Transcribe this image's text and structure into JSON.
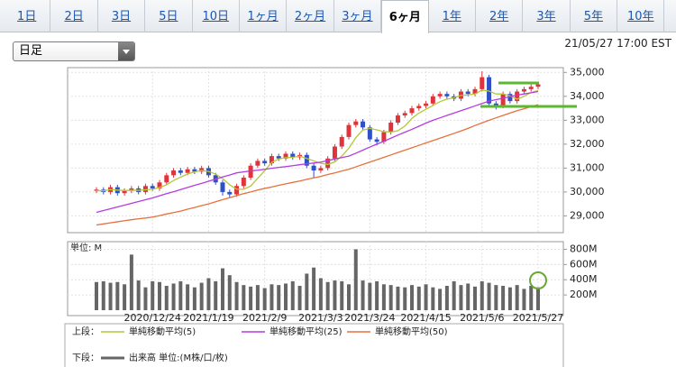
{
  "tabs": [
    {
      "label": "1日"
    },
    {
      "label": "2日"
    },
    {
      "label": "3日"
    },
    {
      "label": "5日"
    },
    {
      "label": "10日"
    },
    {
      "label": "1ヶ月"
    },
    {
      "label": "2ヶ月"
    },
    {
      "label": "3ヶ月"
    },
    {
      "label": "6ヶ月",
      "selected": true
    },
    {
      "label": "1年"
    },
    {
      "label": "2年"
    },
    {
      "label": "3年"
    },
    {
      "label": "5年"
    },
    {
      "label": "10年"
    }
  ],
  "dropdown": "日足",
  "timestamp": "21/05/27 17:00 EST",
  "legend": {
    "upper": "上段：",
    "lower": "下段："
  },
  "chart_data": [
    {
      "type": "candlestick",
      "up_color": "#e0343c",
      "down_color": "#3050c8",
      "grid": true,
      "open": [
        30050,
        30100,
        30000,
        30200,
        29950,
        30050,
        30150,
        30000,
        30250,
        30150,
        30400,
        30700,
        30900,
        30800,
        30950,
        30850,
        31000,
        30700,
        30400,
        30000,
        29900,
        30250,
        30600,
        31100,
        31300,
        31200,
        31500,
        31400,
        31600,
        31450,
        31550,
        31100,
        30900,
        31000,
        31400,
        31900,
        32300,
        32800,
        32950,
        32700,
        32200,
        32100,
        32500,
        32900,
        33200,
        33300,
        33500,
        33600,
        33700,
        34000,
        34100,
        34000,
        33900,
        34200,
        34100,
        34300,
        34800,
        33700,
        33600,
        34100,
        33800,
        34200,
        34300,
        34400
      ],
      "high": [
        30200,
        30200,
        30300,
        30300,
        30150,
        30250,
        30250,
        30350,
        30350,
        30500,
        30800,
        31000,
        31000,
        31050,
        31050,
        31100,
        31100,
        30800,
        30500,
        30100,
        30350,
        30700,
        31200,
        31400,
        31400,
        31600,
        31600,
        31700,
        31700,
        31650,
        31650,
        31200,
        31100,
        31500,
        32000,
        32400,
        32900,
        33050,
        33050,
        32800,
        32300,
        32600,
        33000,
        33300,
        33400,
        33600,
        33700,
        33800,
        34100,
        34200,
        34200,
        34100,
        34300,
        34300,
        34400,
        35050,
        34900,
        33800,
        34200,
        34200,
        34300,
        34400,
        34500,
        34600
      ],
      "low": [
        29950,
        29900,
        29900,
        29850,
        29850,
        29950,
        29900,
        29900,
        30050,
        30050,
        30300,
        30600,
        30700,
        30700,
        30750,
        30750,
        30600,
        30300,
        29850,
        29750,
        29800,
        30150,
        30500,
        31000,
        31100,
        31100,
        31300,
        31300,
        31350,
        31350,
        31000,
        30600,
        30800,
        30900,
        31300,
        31800,
        32200,
        32700,
        32600,
        32100,
        31950,
        32000,
        32400,
        32800,
        33100,
        33200,
        33400,
        33500,
        33600,
        33900,
        33900,
        33800,
        33800,
        34000,
        34000,
        34200,
        33600,
        33450,
        33500,
        33700,
        33700,
        34100,
        34200,
        34300
      ],
      "close": [
        30100,
        30000,
        30200,
        29950,
        30050,
        30150,
        30000,
        30250,
        30150,
        30400,
        30700,
        30900,
        30800,
        30950,
        30850,
        31000,
        30700,
        30400,
        30000,
        29900,
        30250,
        30600,
        31100,
        31300,
        31200,
        31500,
        31400,
        31600,
        31450,
        31550,
        31100,
        30900,
        31000,
        31400,
        31900,
        32300,
        32800,
        32950,
        32700,
        32200,
        32100,
        32500,
        32900,
        33200,
        33300,
        33500,
        33600,
        33700,
        34000,
        34100,
        34000,
        33900,
        34200,
        34100,
        34300,
        34800,
        33700,
        33600,
        34100,
        33800,
        34200,
        34300,
        34400,
        34500
      ],
      "series": [
        {
          "name": "単純移動平均(5)",
          "color": "#b4c83a",
          "values": [
            30050,
            30050,
            30100,
            30080,
            30060,
            30070,
            30070,
            30090,
            30110,
            30190,
            30300,
            30480,
            30620,
            30750,
            30840,
            30900,
            30860,
            30750,
            30560,
            30300,
            30120,
            30110,
            30250,
            30570,
            30890,
            31240,
            31380,
            31440,
            31450,
            31500,
            31400,
            31300,
            31200,
            31150,
            31260,
            31500,
            31830,
            32270,
            32590,
            32660,
            32600,
            32520,
            32510,
            32560,
            32760,
            33080,
            33300,
            33460,
            33620,
            33780,
            33880,
            33940,
            34040,
            34060,
            34100,
            34260,
            34220,
            34100,
            34100,
            34020,
            33880,
            34000,
            34160,
            34240
          ]
        },
        {
          "name": "単純移動平均(25)",
          "color": "#b43ce0",
          "values": [
            29150,
            29225,
            29300,
            29375,
            29450,
            29525,
            29600,
            29675,
            29750,
            29840,
            29930,
            30010,
            30100,
            30190,
            30280,
            30360,
            30450,
            30540,
            30630,
            30710,
            30800,
            30840,
            30880,
            30910,
            30950,
            30990,
            31030,
            31060,
            31100,
            31140,
            31180,
            31210,
            31250,
            31310,
            31380,
            31440,
            31500,
            31620,
            31750,
            31880,
            32000,
            32120,
            32250,
            32380,
            32500,
            32620,
            32750,
            32880,
            33000,
            33100,
            33200,
            33300,
            33400,
            33500,
            33600,
            33700,
            33800,
            33860,
            33920,
            33990,
            34050,
            34100,
            34150,
            34200
          ]
        },
        {
          "name": "単純移動平均(50)",
          "color": "#e8703c",
          "values": [
            28620,
            28665,
            28710,
            28755,
            28800,
            28840,
            28880,
            28910,
            28950,
            29010,
            29080,
            29140,
            29200,
            29280,
            29350,
            29430,
            29500,
            29590,
            29680,
            29760,
            29850,
            29930,
            30000,
            30080,
            30150,
            30210,
            30280,
            30340,
            30400,
            30460,
            30530,
            30590,
            30650,
            30730,
            30800,
            30880,
            30950,
            31050,
            31150,
            31250,
            31350,
            31450,
            31550,
            31650,
            31750,
            31850,
            31950,
            32050,
            32150,
            32250,
            32350,
            32450,
            32550,
            32660,
            32780,
            32890,
            33000,
            33100,
            33200,
            33300,
            33400,
            33480,
            33570,
            33650
          ]
        }
      ],
      "ylim": [
        28300,
        35200
      ],
      "yticks": [
        {
          "value": 29000,
          "label": "29,000"
        },
        {
          "value": 30000,
          "label": "30,000"
        },
        {
          "value": 31000,
          "label": "31,000"
        },
        {
          "value": 32000,
          "label": "32,000"
        },
        {
          "value": 33000,
          "label": "33,000"
        },
        {
          "value": 34000,
          "label": "34,000"
        },
        {
          "value": 35000,
          "label": "35,000"
        }
      ]
    },
    {
      "type": "bar",
      "unit_label": "単位: M",
      "grid": true,
      "categories": [
        null,
        null,
        null,
        null,
        null,
        null,
        null,
        null,
        "2020/12/24",
        null,
        null,
        null,
        null,
        null,
        null,
        null,
        "2021/1/19",
        null,
        null,
        null,
        null,
        null,
        null,
        null,
        "2021/2/9",
        null,
        null,
        null,
        null,
        null,
        null,
        null,
        "2021/3/3",
        null,
        null,
        null,
        null,
        null,
        null,
        "2021/3/24",
        null,
        null,
        null,
        null,
        null,
        null,
        null,
        "2021/4/15",
        null,
        null,
        null,
        null,
        null,
        null,
        null,
        "2021/5/6",
        null,
        null,
        null,
        null,
        null,
        null,
        null,
        "2021/5/27"
      ],
      "series": [
        {
          "name": "出来高 単位:(M株/口/枚)",
          "color": "#666666",
          "values": [
            370,
            380,
            360,
            370,
            340,
            730,
            390,
            300,
            380,
            370,
            320,
            350,
            380,
            340,
            300,
            360,
            420,
            380,
            550,
            460,
            370,
            330,
            310,
            330,
            290,
            340,
            330,
            350,
            380,
            320,
            480,
            560,
            420,
            370,
            390,
            380,
            340,
            800,
            390,
            360,
            380,
            340,
            330,
            310,
            300,
            330,
            310,
            340,
            300,
            280,
            320,
            380,
            330,
            350,
            310,
            380,
            360,
            330,
            320,
            300,
            330,
            280,
            320,
            300
          ]
        }
      ],
      "ylim": [
        0,
        900
      ],
      "yticks": [
        {
          "value": 200,
          "label": "200M"
        },
        {
          "value": 400,
          "label": "400M"
        },
        {
          "value": 600,
          "label": "600M"
        },
        {
          "value": 800,
          "label": "800M"
        }
      ]
    }
  ]
}
